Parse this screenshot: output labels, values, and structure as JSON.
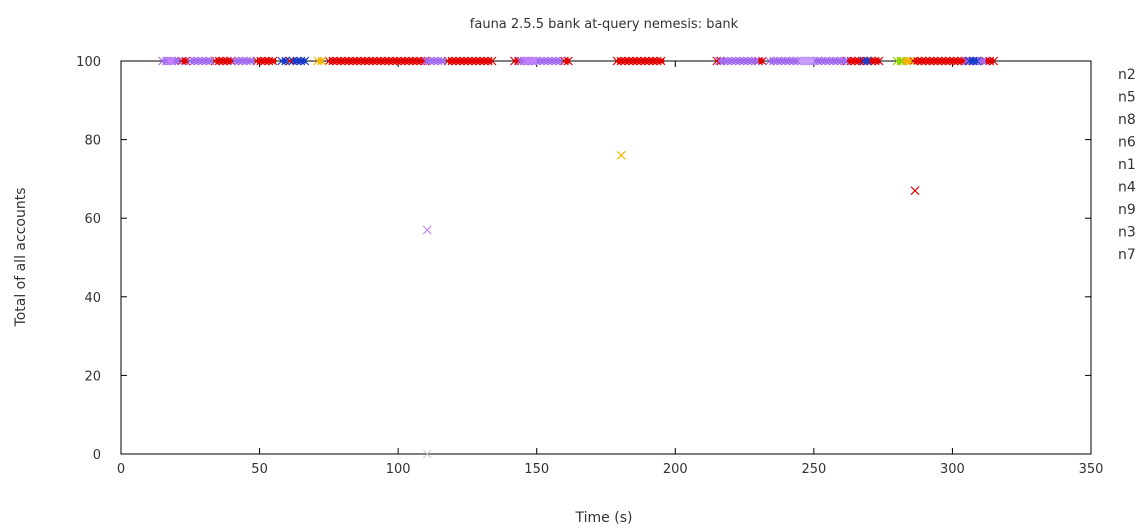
{
  "chart_data": {
    "type": "scatter",
    "title": "fauna 2.5.5 bank at-query nemesis: bank",
    "xlabel": "Time (s)",
    "ylabel": "Total of all accounts",
    "xlim": [
      0,
      350
    ],
    "ylim": [
      0,
      100
    ],
    "xticks": [
      0,
      50,
      100,
      150,
      200,
      250,
      300,
      350
    ],
    "yticks": [
      0,
      20,
      40,
      60,
      80,
      100
    ],
    "grid": false,
    "legend_position": "right",
    "series": [
      {
        "name": "n2",
        "color": "#e30000",
        "marker": "x",
        "ranges": [
          [
            22,
            24
          ],
          [
            34,
            40
          ],
          [
            49,
            56
          ],
          [
            61,
            62
          ],
          [
            75,
            110
          ],
          [
            118,
            134
          ],
          [
            142,
            144
          ],
          [
            160,
            162
          ],
          [
            179,
            196
          ],
          [
            215,
            217
          ],
          [
            230,
            232
          ],
          [
            262,
            274
          ],
          [
            286,
            305
          ],
          [
            312,
            315
          ]
        ],
        "points": [
          [
            286.5,
            67
          ]
        ]
      },
      {
        "name": "n5",
        "color": "#a36cf0",
        "marker": "x",
        "ranges": [
          [
            15,
            21
          ],
          [
            25,
            33
          ],
          [
            41,
            48
          ],
          [
            110,
            117
          ],
          [
            144,
            159
          ],
          [
            216,
            230
          ],
          [
            234,
            262
          ],
          [
            305,
            312
          ]
        ],
        "points": []
      },
      {
        "name": "n8",
        "color": "#1a3cc8",
        "marker": "x",
        "ranges": [
          [
            58,
            60
          ],
          [
            62,
            67
          ],
          [
            268,
            270
          ],
          [
            306,
            309
          ]
        ],
        "points": []
      },
      {
        "name": "n6",
        "color": "#f4b400",
        "marker": "x",
        "ranges": [
          [
            71,
            73
          ],
          [
            282,
            285
          ]
        ],
        "points": [
          [
            180.5,
            76
          ]
        ]
      },
      {
        "name": "n1",
        "color": "#8dd400",
        "marker": "x",
        "ranges": [
          [
            280,
            282
          ]
        ],
        "points": []
      },
      {
        "name": "n4",
        "color": "#c080ff",
        "marker": "x",
        "ranges": [
          [
            17,
            19
          ],
          [
            146,
            150
          ]
        ],
        "points": [
          [
            110.5,
            57
          ]
        ]
      },
      {
        "name": "n9",
        "color": "#c8a0ff",
        "marker": "x",
        "ranges": [
          [
            245,
            250
          ]
        ],
        "points": []
      },
      {
        "name": "n3",
        "color": "#cccccc",
        "marker": "x",
        "ranges": [],
        "points": [
          [
            110.5,
            0
          ]
        ]
      },
      {
        "name": "n7",
        "color": "#6a00a0",
        "marker": "x",
        "ranges": [],
        "points": []
      }
    ]
  }
}
